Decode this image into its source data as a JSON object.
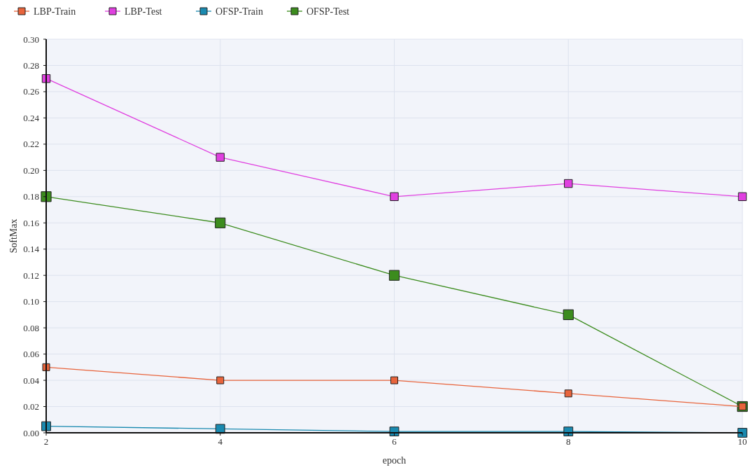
{
  "chart_data": {
    "type": "line",
    "xlabel": "epoch",
    "ylabel": "SoftMax",
    "x": [
      2,
      4,
      6,
      8,
      10
    ],
    "xlim": [
      2,
      10
    ],
    "xticks": [
      2,
      4,
      6,
      8,
      10
    ],
    "ylim": [
      0,
      0.3
    ],
    "yticks": [
      {
        "value": 0,
        "label": "0.00"
      },
      {
        "value": 0.02,
        "label": "0.02"
      },
      {
        "value": 0.04,
        "label": "0.04"
      },
      {
        "value": 0.06,
        "label": "0.06"
      },
      {
        "value": 0.08,
        "label": "0.08"
      },
      {
        "value": 0.1,
        "label": "0.10"
      },
      {
        "value": 0.12,
        "label": "0.12"
      },
      {
        "value": 0.14,
        "label": "0.14"
      },
      {
        "value": 0.16,
        "label": "0.16"
      },
      {
        "value": 0.18,
        "label": "0.18"
      },
      {
        "value": 0.2,
        "label": "0.20"
      },
      {
        "value": 0.22,
        "label": "0.22"
      },
      {
        "value": 0.24,
        "label": "0.24"
      },
      {
        "value": 0.26,
        "label": "0.26"
      },
      {
        "value": 0.28,
        "label": "0.28"
      },
      {
        "value": 0.3,
        "label": "0.30"
      }
    ],
    "grid": true,
    "legend": "top left",
    "marker": "square",
    "line_style": "solid",
    "series": [
      {
        "name": "LBP-Train",
        "color": "#e8643c",
        "values": [
          0.05,
          0.04,
          0.04,
          0.03,
          0.02
        ]
      },
      {
        "name": "LBP-Test",
        "color": "#e040e0",
        "values": [
          0.27,
          0.21,
          0.18,
          0.19,
          0.18
        ]
      },
      {
        "name": "OFSP-Train",
        "color": "#1a8ab0",
        "values": [
          0.005,
          0.003,
          0.001,
          0.001,
          0
        ]
      },
      {
        "name": "OFSP-Test",
        "color": "#3c8c1e",
        "values": [
          0.18,
          0.16,
          0.12,
          0.09,
          0.02
        ]
      }
    ]
  }
}
